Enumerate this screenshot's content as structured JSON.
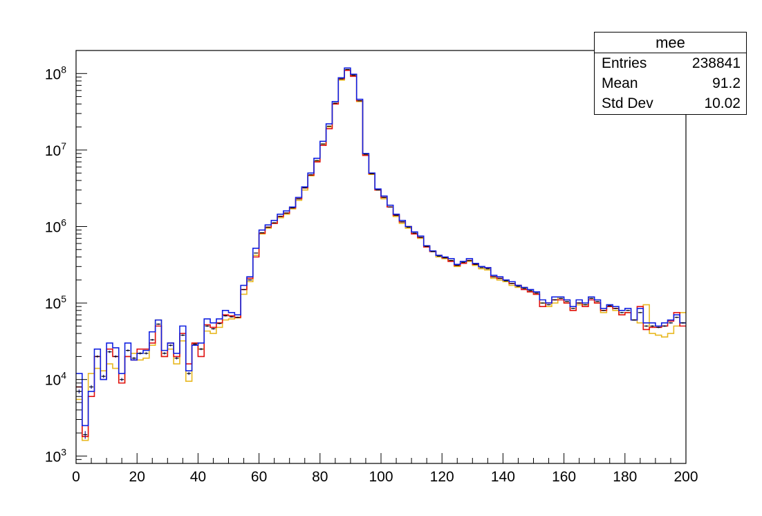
{
  "stats_box": {
    "title": "mee",
    "rows": [
      {
        "label": "Entries",
        "value": "238841"
      },
      {
        "label": "Mean",
        "value": "91.2"
      },
      {
        "label": "Std Dev",
        "value": "10.02"
      }
    ]
  },
  "chart_data": {
    "type": "line",
    "title": "",
    "xlabel": "",
    "ylabel": "",
    "xlim": [
      0,
      200
    ],
    "ylim": [
      800,
      200000000
    ],
    "y_scale": "log",
    "grid": false,
    "legend": "none",
    "x_ticks": [
      "0",
      "20",
      "40",
      "60",
      "80",
      "100",
      "120",
      "140",
      "160",
      "180",
      "200"
    ],
    "y_ticks": [
      {
        "base": "10",
        "exp": "3",
        "value": 1000
      },
      {
        "base": "10",
        "exp": "4",
        "value": 10000
      },
      {
        "base": "10",
        "exp": "5",
        "value": 100000
      },
      {
        "base": "10",
        "exp": "6",
        "value": 1000000
      },
      {
        "base": "10",
        "exp": "7",
        "value": 10000000
      },
      {
        "base": "10",
        "exp": "8",
        "value": 100000000
      }
    ],
    "bin_width": 2,
    "x": [
      1,
      3,
      5,
      7,
      9,
      11,
      13,
      15,
      17,
      19,
      21,
      23,
      25,
      27,
      29,
      31,
      33,
      35,
      37,
      39,
      41,
      43,
      45,
      47,
      49,
      51,
      53,
      55,
      57,
      59,
      61,
      63,
      65,
      67,
      69,
      71,
      73,
      75,
      77,
      79,
      81,
      83,
      85,
      87,
      89,
      91,
      93,
      95,
      97,
      99,
      101,
      103,
      105,
      107,
      109,
      111,
      113,
      115,
      117,
      119,
      121,
      123,
      125,
      127,
      129,
      131,
      133,
      135,
      137,
      139,
      141,
      143,
      145,
      147,
      149,
      151,
      153,
      155,
      157,
      159,
      161,
      163,
      165,
      167,
      169,
      171,
      173,
      175,
      177,
      179,
      181,
      183,
      185,
      187,
      189,
      191,
      193,
      195,
      197,
      199
    ],
    "series": [
      {
        "color": "#e8b820",
        "style": "histogram-step",
        "values": [
          5500,
          1600,
          12000,
          14000,
          13000,
          16000,
          14000,
          9000,
          20000,
          22000,
          18000,
          19000,
          28000,
          60000,
          20000,
          25000,
          16000,
          32000,
          9500,
          30000,
          25000,
          43000,
          40000,
          48000,
          60000,
          62000,
          64000,
          130000,
          190000,
          420000,
          800000,
          950000,
          1100000,
          1300000,
          1450000,
          1700000,
          2200000,
          3000000,
          4600000,
          7200000,
          12000000,
          20000000,
          40000000,
          82000000,
          112000000,
          95000000,
          43000000,
          8800000,
          4800000,
          3000000,
          2300000,
          1800000,
          1350000,
          1100000,
          950000,
          800000,
          700000,
          560000,
          470000,
          400000,
          380000,
          360000,
          300000,
          330000,
          350000,
          310000,
          280000,
          270000,
          210000,
          200000,
          190000,
          170000,
          160000,
          160000,
          140000,
          130000,
          100000,
          90000,
          100000,
          120000,
          100000,
          80000,
          95000,
          95000,
          120000,
          100000,
          75000,
          90000,
          80000,
          70000,
          75000,
          60000,
          55000,
          95000,
          40000,
          38000,
          36000,
          40000,
          50000,
          75000
        ]
      },
      {
        "color": "#e01010",
        "style": "histogram-step",
        "values": [
          8000,
          1800,
          6000,
          20000,
          10000,
          25000,
          20000,
          9000,
          20000,
          18000,
          25000,
          25000,
          30000,
          50000,
          20000,
          30000,
          20000,
          40000,
          16000,
          30000,
          20000,
          52000,
          48000,
          55000,
          70000,
          68000,
          65000,
          150000,
          210000,
          400000,
          820000,
          980000,
          1100000,
          1350000,
          1500000,
          1750000,
          2300000,
          3200000,
          4700000,
          7000000,
          11500000,
          19000000,
          40000000,
          85000000,
          110000000,
          92000000,
          44000000,
          8500000,
          4900000,
          3000000,
          2400000,
          1800000,
          1400000,
          1150000,
          1000000,
          800000,
          720000,
          540000,
          470000,
          420000,
          390000,
          350000,
          310000,
          330000,
          360000,
          320000,
          300000,
          290000,
          220000,
          210000,
          200000,
          180000,
          170000,
          150000,
          140000,
          130000,
          90000,
          100000,
          110000,
          110000,
          100000,
          80000,
          100000,
          90000,
          110000,
          100000,
          80000,
          90000,
          85000,
          70000,
          75000,
          60000,
          90000,
          45000,
          48000,
          48000,
          50000,
          58000,
          75000,
          50000
        ]
      },
      {
        "color": "#1020e0",
        "style": "histogram-step",
        "values": [
          12000,
          2500,
          7000,
          25000,
          10000,
          30000,
          26000,
          12000,
          30000,
          18000,
          22000,
          24000,
          42000,
          60000,
          24000,
          30000,
          22000,
          50000,
          13000,
          28000,
          30000,
          62000,
          55000,
          62000,
          80000,
          75000,
          70000,
          170000,
          220000,
          520000,
          900000,
          1050000,
          1200000,
          1450000,
          1600000,
          1800000,
          2400000,
          3300000,
          5000000,
          7800000,
          13000000,
          22000000,
          43000000,
          88000000,
          118000000,
          98000000,
          46000000,
          9000000,
          5000000,
          3100000,
          2500000,
          1900000,
          1450000,
          1200000,
          1000000,
          850000,
          750000,
          560000,
          480000,
          420000,
          400000,
          380000,
          320000,
          350000,
          380000,
          330000,
          300000,
          290000,
          230000,
          220000,
          200000,
          190000,
          170000,
          160000,
          150000,
          140000,
          110000,
          100000,
          120000,
          120000,
          110000,
          90000,
          110000,
          100000,
          120000,
          110000,
          85000,
          95000,
          90000,
          80000,
          85000,
          60000,
          85000,
          55000,
          55000,
          50000,
          55000,
          60000,
          70000,
          55000
        ]
      },
      {
        "color": "#000000",
        "style": "points-with-errors",
        "values": [
          7000,
          1900,
          8000,
          20000,
          11000,
          23000,
          20000,
          10000,
          24000,
          19000,
          22000,
          22000,
          33000,
          53000,
          22000,
          28000,
          19000,
          38000,
          12000,
          29000,
          25000,
          50000,
          46000,
          54000,
          68000,
          66000,
          65000,
          150000,
          200000,
          450000,
          830000,
          980000,
          1120000,
          1360000,
          1500000,
          1750000,
          2300000,
          3200000,
          4750000,
          7300000,
          12000000,
          20500000,
          41000000,
          85000000,
          113000000,
          95000000,
          44000000,
          8800000,
          4900000,
          3000000,
          2400000,
          1800000,
          1400000,
          1150000,
          980000,
          820000,
          720000,
          550000,
          470000,
          410000,
          390000,
          360000,
          310000,
          340000,
          360000,
          320000,
          290000,
          280000,
          220000,
          210000,
          195000,
          180000,
          165000,
          155000,
          145000,
          135000,
          100000,
          95000,
          110000,
          115000,
          105000,
          85000,
          100000,
          95000,
          115000,
          105000,
          80000,
          92000,
          85000,
          75000,
          80000,
          60000,
          75000,
          50000,
          50000,
          48000,
          50000,
          55000,
          65000,
          55000
        ]
      }
    ]
  }
}
